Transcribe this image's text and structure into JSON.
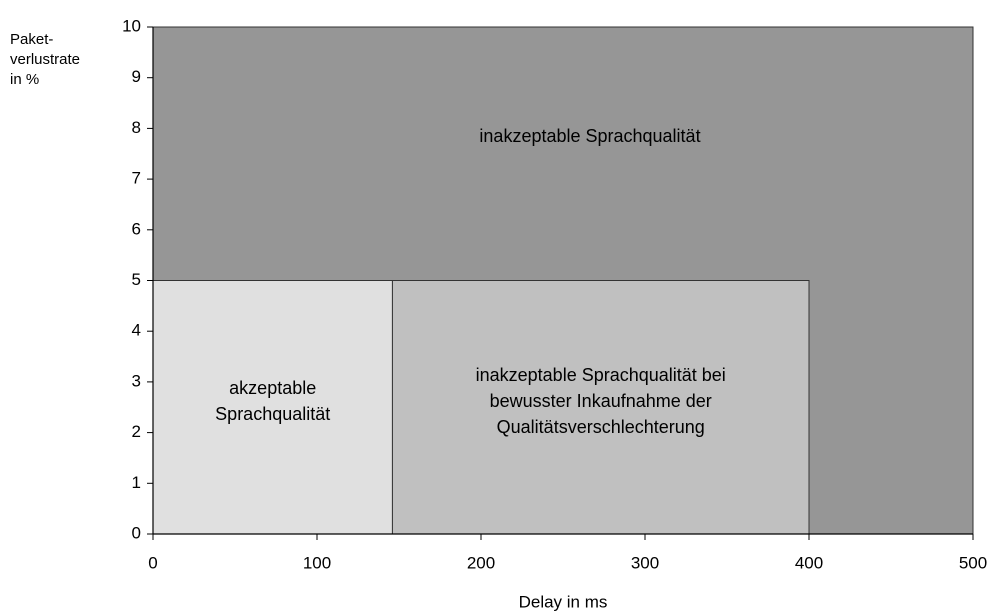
{
  "chart_data": {
    "type": "region",
    "ylabel": [
      "Paket-",
      "verlustrate",
      "in %"
    ],
    "xlabel": "Delay in ms",
    "xlim": [
      0,
      500
    ],
    "ylim": [
      0,
      10
    ],
    "xticks": [
      0,
      100,
      200,
      300,
      400,
      500
    ],
    "yticks": [
      0,
      1,
      2,
      3,
      4,
      5,
      6,
      7,
      8,
      9,
      10
    ],
    "regions": [
      {
        "label": [
          "inakzeptable Sprachqualität"
        ],
        "color": "#969696",
        "x": [
          0,
          500
        ],
        "y": [
          0,
          10
        ]
      },
      {
        "label": [
          "akzeptable",
          "Sprachqualität"
        ],
        "color": "#e0e0e0",
        "x": [
          0,
          146
        ],
        "y": [
          0,
          5
        ]
      },
      {
        "label": [
          "inakzeptable Sprachqualität bei",
          "bewusster Inkaufnahme der",
          "Qualitätsverschlechterung"
        ],
        "color": "#c0c0c0",
        "x": [
          146,
          400
        ],
        "y": [
          0,
          5
        ]
      }
    ]
  }
}
